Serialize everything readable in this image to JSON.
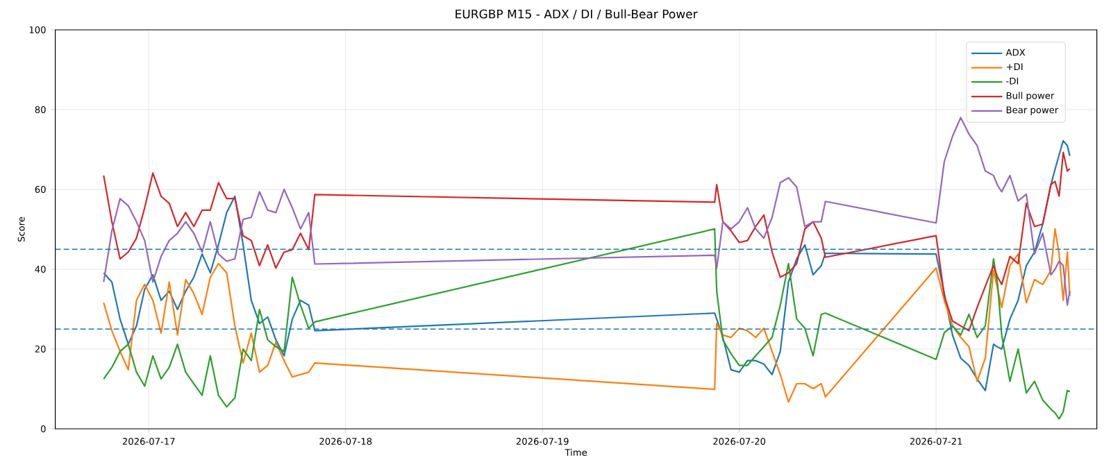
{
  "chart_data": {
    "type": "line",
    "title": "EURGBP M15 - ADX / DI / Bull-Bear Power",
    "xlabel": "Time",
    "ylabel": "Score",
    "x": [
      "2026-07-16T18:30",
      "2026-07-16T19:30",
      "2026-07-16T20:30",
      "2026-07-16T21:30",
      "2026-07-16T22:30",
      "2026-07-16T23:30",
      "2026-07-17T00:30",
      "2026-07-17T01:30",
      "2026-07-17T02:30",
      "2026-07-17T03:30",
      "2026-07-17T04:30",
      "2026-07-17T05:30",
      "2026-07-17T06:30",
      "2026-07-17T07:30",
      "2026-07-17T08:30",
      "2026-07-17T09:30",
      "2026-07-17T10:30",
      "2026-07-17T11:30",
      "2026-07-17T12:30",
      "2026-07-17T13:30",
      "2026-07-17T14:30",
      "2026-07-17T15:30",
      "2026-07-17T16:30",
      "2026-07-17T17:30",
      "2026-07-17T18:30",
      "2026-07-17T19:30",
      "2026-07-17T20:15",
      "2026-07-19T21:00",
      "2026-07-19T21:15",
      "2026-07-19T22:00",
      "2026-07-19T23:00",
      "2026-07-20T00:00",
      "2026-07-20T01:00",
      "2026-07-20T02:00",
      "2026-07-20T03:00",
      "2026-07-20T04:00",
      "2026-07-20T05:00",
      "2026-07-20T06:00",
      "2026-07-20T07:00",
      "2026-07-20T08:00",
      "2026-07-20T09:00",
      "2026-07-20T10:00",
      "2026-07-20T10:30",
      "2026-07-21T00:00",
      "2026-07-21T01:00",
      "2026-07-21T02:00",
      "2026-07-21T03:00",
      "2026-07-21T04:00",
      "2026-07-21T05:00",
      "2026-07-21T06:00",
      "2026-07-21T07:00",
      "2026-07-21T07:30",
      "2026-07-21T08:00",
      "2026-07-21T09:00",
      "2026-07-21T10:00",
      "2026-07-21T11:00",
      "2026-07-21T12:00",
      "2026-07-21T13:00",
      "2026-07-21T14:00",
      "2026-07-21T14:30",
      "2026-07-21T15:00",
      "2026-07-21T15:30",
      "2026-07-21T16:00",
      "2026-07-21T16:18"
    ],
    "series": [
      {
        "name": "ADX",
        "color": "#1f77b4",
        "values": [
          39.1,
          36.8,
          27.5,
          21.2,
          25.8,
          35,
          38.6,
          32.2,
          34.5,
          29.9,
          34.5,
          38,
          43.8,
          39.1,
          46.1,
          54.2,
          58.3,
          46.1,
          32.2,
          26.4,
          28,
          22.3,
          18.3,
          27.5,
          32.2,
          31,
          24.6,
          29,
          27.5,
          22.9,
          14.8,
          14.2,
          17.1,
          17.1,
          16.2,
          13.6,
          19.4,
          36.8,
          42.6,
          46.1,
          38.6,
          40.9,
          44,
          43.8,
          33.9,
          23.5,
          17.7,
          15.9,
          12.5,
          9.6,
          21.2,
          20.5,
          20,
          27.5,
          32.2,
          40.9,
          44.3,
          51.3,
          61.2,
          65,
          68.7,
          72.2,
          71,
          68.4
        ]
      },
      {
        "name": "+DI",
        "color": "#ff7f0e",
        "values": [
          31.6,
          24.6,
          19.4,
          14.8,
          32.2,
          36.2,
          32.2,
          24,
          36.8,
          23.5,
          37.4,
          33.9,
          28.7,
          38,
          41.4,
          39.1,
          25.8,
          16.5,
          24,
          14.2,
          15.9,
          21.7,
          17.1,
          13,
          13.6,
          14.2,
          16.5,
          9.9,
          26.4,
          23.5,
          22.9,
          25.2,
          24.6,
          22.9,
          25.2,
          19.4,
          13.6,
          6.7,
          11.3,
          11.3,
          10.1,
          11.3,
          8,
          40.3,
          32.2,
          25.8,
          22.9,
          20.6,
          11.9,
          17.7,
          39.7,
          35,
          30.4,
          40.9,
          43.8,
          31.6,
          37.4,
          36.2,
          39.7,
          50.1,
          43.8,
          32.2,
          44.3,
          33.3
        ]
      },
      {
        "name": "-DI",
        "color": "#2ca02c",
        "values": [
          12.5,
          15.4,
          19.4,
          21.2,
          14.2,
          10.7,
          18.3,
          12.5,
          15.4,
          21.2,
          14.2,
          11.3,
          8.4,
          18.3,
          8.4,
          5.5,
          7.8,
          20,
          17.1,
          29.9,
          22.3,
          20.6,
          19.4,
          38,
          31,
          25.2,
          26.8,
          50.1,
          34.5,
          22.3,
          18.8,
          15.9,
          15.9,
          18.3,
          20.6,
          22.9,
          31,
          41.4,
          27.5,
          25.2,
          18.3,
          28.7,
          29,
          17.4,
          24.1,
          25.8,
          23.5,
          28.7,
          22.9,
          25.8,
          42.6,
          36.2,
          23.5,
          11.9,
          20,
          9,
          11.9,
          7.2,
          4.9,
          4,
          2.5,
          4.3,
          9.6,
          9.3
        ]
      },
      {
        "name": "Bull power",
        "color": "#d62728",
        "values": [
          63.5,
          51.9,
          42.6,
          44.3,
          47.8,
          55.4,
          64.1,
          58.3,
          56.5,
          50.7,
          54.2,
          50.7,
          54.8,
          54.8,
          61.7,
          57.7,
          57.7,
          48.4,
          47.2,
          40.9,
          46.1,
          40.3,
          44.3,
          44.9,
          49,
          44.9,
          58.7,
          56.8,
          61.2,
          51.9,
          49.6,
          46.7,
          47.2,
          50.7,
          53.6,
          44.3,
          38,
          39.1,
          41.4,
          50.1,
          51.9,
          47.8,
          43,
          48.4,
          33.3,
          27,
          25.8,
          24.6,
          30.4,
          35.7,
          40.9,
          38,
          36.2,
          43.2,
          41.4,
          56.5,
          50.7,
          51.3,
          61.2,
          62,
          58.3,
          69.3,
          64.6,
          65.2
        ]
      },
      {
        "name": "Bear power",
        "color": "#9467bd",
        "values": [
          36.8,
          49.6,
          57.7,
          55.9,
          51.9,
          47.2,
          36.8,
          43.2,
          47.2,
          49,
          51.9,
          49,
          44.3,
          51.9,
          43.8,
          42,
          42.6,
          52.5,
          53,
          59.4,
          54.8,
          54.2,
          60,
          55.4,
          50.1,
          54.2,
          41.3,
          43.5,
          40.3,
          51.9,
          50.1,
          51.9,
          55.4,
          50.1,
          47.8,
          53,
          61.7,
          62.9,
          60.6,
          50.7,
          51.9,
          51.9,
          57,
          51.6,
          67,
          73.3,
          78,
          73.9,
          71,
          64.6,
          63.5,
          61,
          59.4,
          63.5,
          57.1,
          58.8,
          43.8,
          49,
          38.6,
          40,
          42,
          40.9,
          31,
          34.5
        ]
      }
    ],
    "xlim": [
      "2026-07-16T12:36",
      "2026-07-21T19:36"
    ],
    "xticks": [
      "2026-07-17",
      "2026-07-18",
      "2026-07-19",
      "2026-07-20",
      "2026-07-21"
    ],
    "ylim": [
      0,
      100
    ],
    "yticks": [
      0,
      20,
      40,
      60,
      80,
      100
    ],
    "ref_lines": [
      {
        "axis": "y",
        "value": 45,
        "color": "#1f77b4",
        "line_style": "dashed"
      },
      {
        "axis": "y",
        "value": 25,
        "color": "#1f77b4",
        "line_style": "dashed"
      }
    ],
    "grid": true,
    "legend": "top right"
  }
}
